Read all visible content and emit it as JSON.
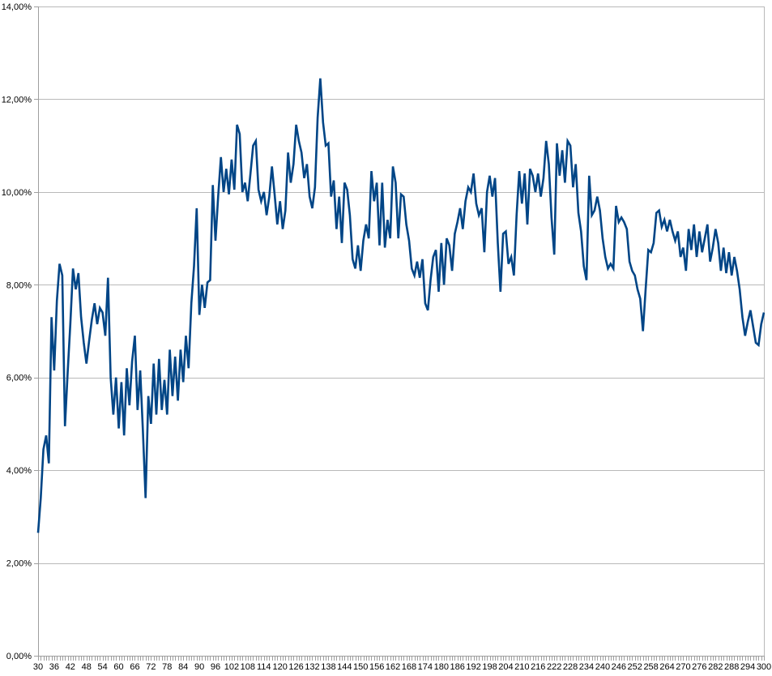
{
  "chart_data": {
    "type": "line",
    "title": "",
    "xlabel": "",
    "ylabel": "",
    "x_start": 30,
    "x_end": 300,
    "x_step": 1,
    "x_label_every": 6,
    "x_tick_labels": [
      "30",
      "36",
      "42",
      "48",
      "54",
      "60",
      "66",
      "72",
      "78",
      "84",
      "90",
      "96",
      "102",
      "108",
      "114",
      "120",
      "126",
      "132",
      "138",
      "144",
      "150",
      "156",
      "162",
      "168",
      "174",
      "180",
      "186",
      "192",
      "198",
      "204",
      "210",
      "216",
      "222",
      "228",
      "234",
      "240",
      "246",
      "252",
      "258",
      "264",
      "270",
      "276",
      "282",
      "288",
      "294",
      "300"
    ],
    "y_tick_labels_top_to_bottom": [
      "14,00%",
      "12,00%",
      "10,00%",
      "8,00%",
      "6,00%",
      "4,00%",
      "2,00%",
      "0,00%"
    ],
    "ylim": [
      0,
      14
    ],
    "y_grid_step": 2,
    "grid": "horizontal",
    "legend": "none",
    "series": [
      {
        "name": "series-1",
        "color": "#004586",
        "values": [
          2.65,
          3.4,
          4.45,
          4.75,
          4.15,
          7.3,
          6.15,
          7.65,
          8.45,
          8.2,
          4.95,
          6.1,
          7.15,
          8.35,
          7.9,
          8.25,
          7.3,
          6.75,
          6.3,
          6.8,
          7.25,
          7.6,
          7.15,
          7.5,
          7.4,
          6.9,
          8.15,
          6.0,
          5.2,
          6.0,
          4.9,
          5.9,
          4.75,
          6.2,
          5.4,
          6.35,
          6.9,
          5.3,
          6.15,
          4.85,
          3.4,
          5.6,
          5.0,
          6.3,
          5.2,
          6.4,
          5.3,
          5.95,
          5.2,
          6.6,
          5.6,
          6.45,
          5.5,
          6.6,
          5.9,
          6.9,
          6.2,
          7.6,
          8.4,
          9.65,
          7.35,
          8.0,
          7.5,
          8.05,
          8.1,
          10.15,
          8.95,
          9.9,
          10.75,
          10.0,
          10.5,
          9.95,
          10.7,
          10.05,
          11.45,
          11.25,
          10.0,
          10.2,
          9.8,
          10.4,
          11.0,
          11.1,
          10.05,
          9.8,
          10.0,
          9.5,
          9.9,
          10.55,
          9.95,
          9.3,
          9.8,
          9.2,
          9.6,
          10.85,
          10.2,
          10.6,
          11.45,
          11.1,
          10.85,
          10.3,
          10.6,
          9.9,
          9.65,
          10.1,
          11.6,
          12.45,
          11.5,
          11.0,
          11.05,
          9.9,
          10.25,
          9.2,
          9.9,
          8.9,
          10.2,
          10.05,
          9.5,
          8.55,
          8.35,
          8.85,
          8.3,
          8.95,
          9.3,
          9.0,
          10.45,
          9.8,
          10.2,
          8.85,
          10.2,
          8.8,
          9.4,
          9.0,
          10.55,
          10.2,
          9.0,
          9.95,
          9.9,
          9.3,
          8.95,
          8.35,
          8.2,
          8.5,
          8.15,
          8.55,
          7.6,
          7.45,
          8.1,
          8.6,
          8.75,
          7.85,
          8.9,
          8.0,
          9.0,
          8.85,
          8.3,
          9.1,
          9.35,
          9.65,
          9.2,
          9.8,
          10.1,
          10.0,
          10.4,
          9.75,
          9.5,
          9.65,
          8.7,
          10.0,
          10.35,
          9.9,
          10.3,
          8.9,
          7.85,
          9.1,
          9.15,
          8.45,
          8.6,
          8.2,
          9.5,
          10.45,
          9.75,
          10.4,
          9.3,
          10.5,
          10.35,
          10.0,
          10.4,
          9.9,
          10.3,
          11.1,
          10.6,
          9.45,
          8.65,
          11.05,
          10.35,
          10.9,
          10.2,
          11.1,
          11.0,
          10.1,
          10.6,
          9.55,
          9.15,
          8.4,
          8.1,
          10.35,
          9.5,
          9.6,
          9.9,
          9.6,
          9.0,
          8.6,
          8.35,
          8.45,
          8.35,
          9.7,
          9.35,
          9.45,
          9.35,
          9.2,
          8.5,
          8.3,
          8.2,
          7.9,
          7.7,
          7.0,
          7.9,
          8.75,
          8.7,
          8.9,
          9.55,
          9.6,
          9.25,
          9.4,
          9.15,
          9.4,
          9.15,
          8.95,
          9.15,
          8.6,
          8.8,
          8.3,
          9.2,
          8.75,
          9.3,
          8.6,
          9.15,
          8.7,
          9.0,
          9.3,
          8.5,
          8.8,
          9.2,
          8.9,
          8.3,
          8.8,
          8.25,
          8.7,
          8.2,
          8.6,
          8.3,
          7.9,
          7.3,
          6.9,
          7.2,
          7.45,
          7.1,
          6.75,
          6.7,
          7.15,
          7.4
        ]
      }
    ],
    "colors": {
      "line": "#004586",
      "gridline": "#b9b9b9",
      "axis": "#9e9e9e",
      "text": "#000000",
      "background": "#ffffff"
    }
  }
}
